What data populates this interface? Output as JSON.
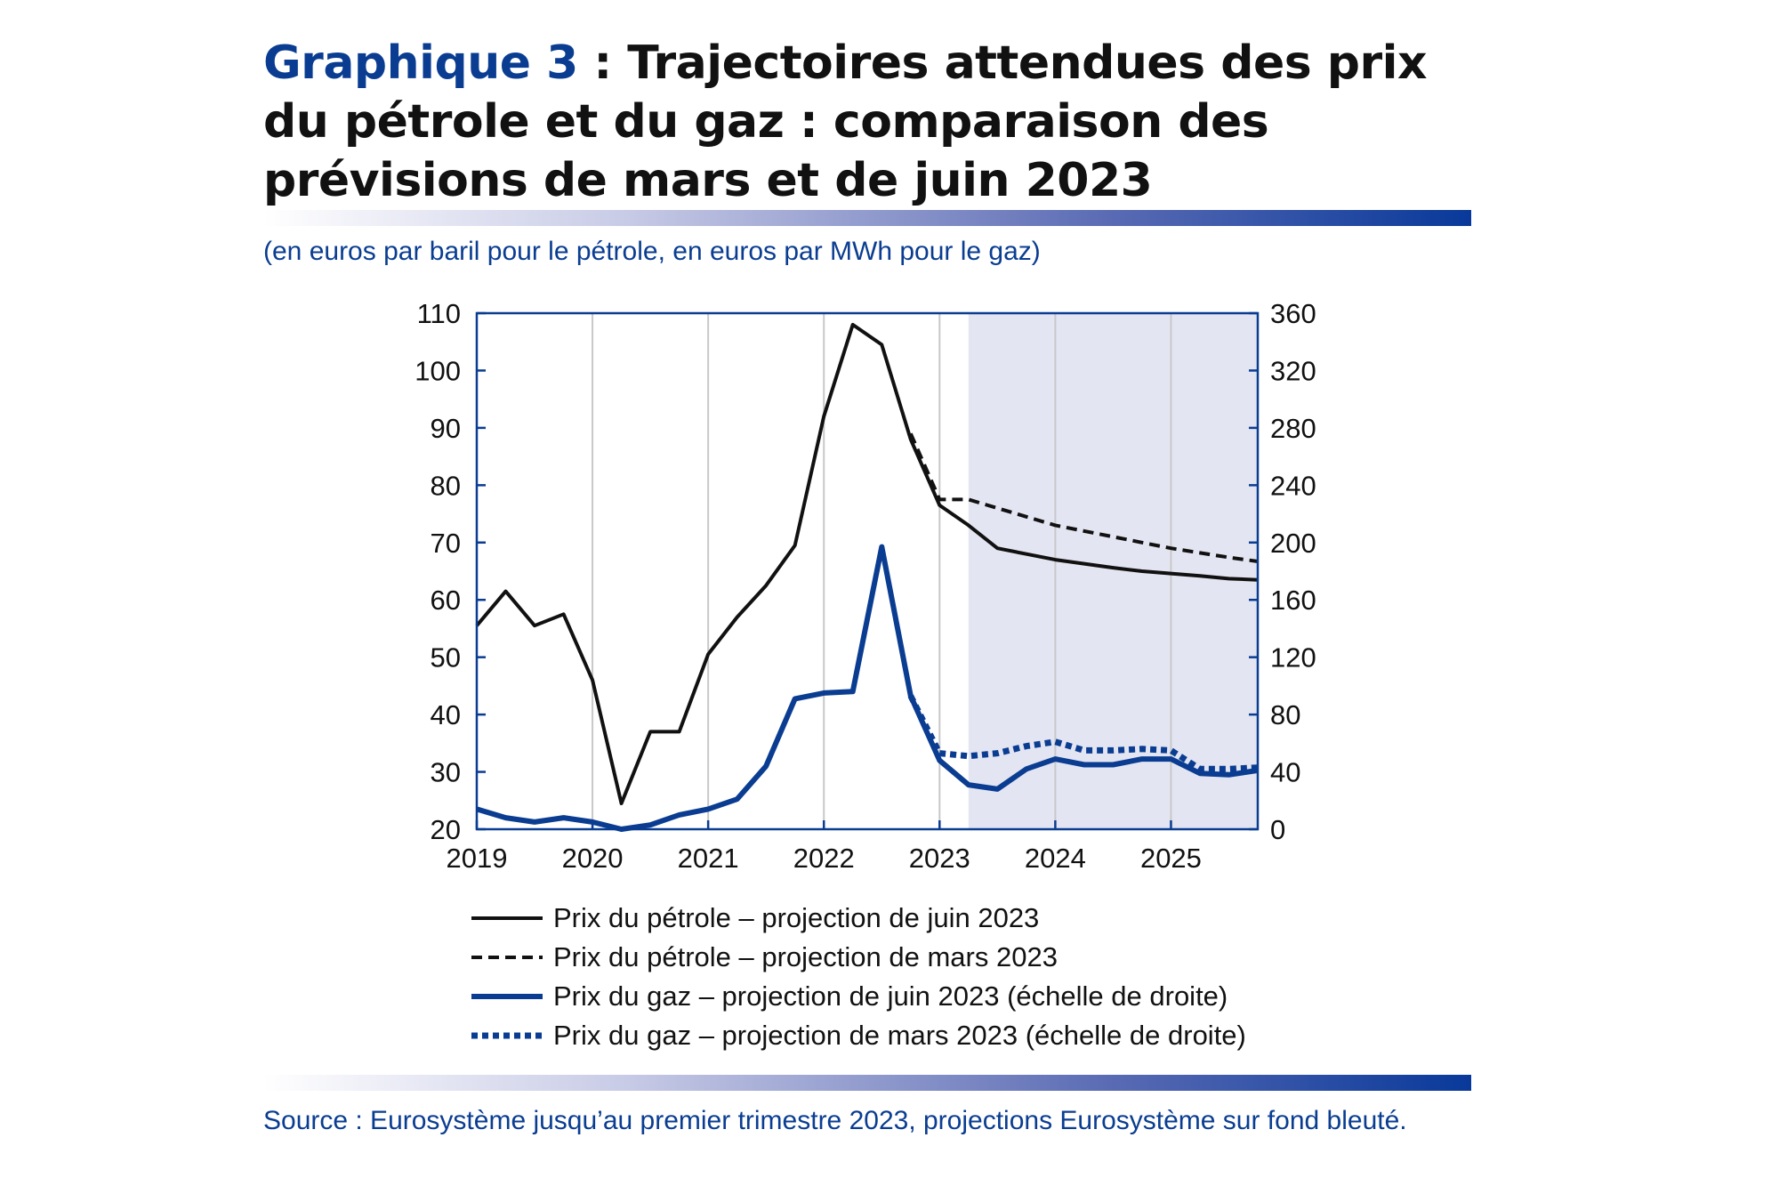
{
  "header": {
    "title_label": "Graphique 3",
    "title_text": " : Trajectoires attendues des prix du pétrole et du gaz : comparaison des prévisions de mars et de juin 2023",
    "unit_note": "(en euros par baril pour le pétrole, en euros par MWh pour le gaz)"
  },
  "footer": {
    "source": "Source : Eurosystème jusqu’au premier trimestre 2023, projections Eurosystème sur fond bleuté."
  },
  "colors": {
    "oil": "#111111",
    "gas": "#0a3d91",
    "projection_band": "#e4e5f2",
    "frame": "#0a3d91",
    "grid": "#c8c8c8"
  },
  "chart_data": {
    "type": "line",
    "x_ticks": [
      "2019",
      "2020",
      "2021",
      "2022",
      "2023",
      "2024",
      "2025"
    ],
    "xlim": [
      2019.0,
      2025.75
    ],
    "projection_start": 2023.25,
    "y_left": {
      "lim": [
        20,
        110
      ],
      "ticks": [
        "20",
        "30",
        "40",
        "50",
        "60",
        "70",
        "80",
        "90",
        "100",
        "110"
      ]
    },
    "y_right": {
      "lim": [
        0,
        360
      ],
      "ticks": [
        "0",
        "40",
        "80",
        "120",
        "160",
        "200",
        "240",
        "280",
        "320",
        "360"
      ]
    },
    "grid": "vertical",
    "legend_position": "below",
    "series": [
      {
        "name": "Prix du pétrole – projection de juin 2023",
        "axis": "left",
        "style": "solid",
        "color": "#111111",
        "x": [
          2019.0,
          2019.25,
          2019.5,
          2019.75,
          2020.0,
          2020.25,
          2020.5,
          2020.75,
          2021.0,
          2021.25,
          2021.5,
          2021.75,
          2022.0,
          2022.25,
          2022.5,
          2022.75,
          2023.0,
          2023.25,
          2023.5,
          2023.75,
          2024.0,
          2024.25,
          2024.5,
          2024.75,
          2025.0,
          2025.25,
          2025.5,
          2025.75
        ],
        "values": [
          55.5,
          61.5,
          55.5,
          57.5,
          46,
          24.5,
          37,
          37,
          50.5,
          57,
          62.5,
          69.5,
          92,
          108,
          104.5,
          88,
          76.5,
          73,
          69,
          68,
          67,
          66.3,
          65.6,
          65,
          64.6,
          64.2,
          63.7,
          63.5
        ]
      },
      {
        "name": "Prix du pétrole – projection de mars 2023",
        "axis": "left",
        "style": "dashed",
        "color": "#111111",
        "x": [
          2022.75,
          2023.0,
          2023.25,
          2023.5,
          2023.75,
          2024.0,
          2024.25,
          2024.5,
          2024.75,
          2025.0,
          2025.25,
          2025.5,
          2025.75
        ],
        "values": [
          89,
          77.5,
          77.5,
          76,
          74.5,
          73,
          72,
          71,
          70,
          69,
          68.2,
          67.4,
          66.7
        ]
      },
      {
        "name": "Prix du gaz – projection de juin 2023 (échelle de droite)",
        "axis": "right",
        "style": "solid",
        "color": "#0a3d91",
        "x": [
          2019.0,
          2019.25,
          2019.5,
          2019.75,
          2020.0,
          2020.25,
          2020.5,
          2020.75,
          2021.0,
          2021.25,
          2021.5,
          2021.75,
          2022.0,
          2022.25,
          2022.5,
          2022.75,
          2023.0,
          2023.25,
          2023.5,
          2023.75,
          2024.0,
          2024.25,
          2024.5,
          2024.75,
          2025.0,
          2025.25,
          2025.5,
          2025.75
        ],
        "values": [
          14,
          8,
          5,
          8,
          5,
          0,
          3,
          10,
          14,
          21,
          44,
          91,
          95,
          96,
          197,
          93,
          48,
          31,
          28,
          42,
          49,
          45,
          45,
          49,
          49,
          39,
          38,
          41
        ]
      },
      {
        "name": "Prix du gaz – projection de mars 2023 (échelle de droite)",
        "axis": "right",
        "style": "dotted",
        "color": "#0a3d91",
        "x": [
          2022.75,
          2023.0,
          2023.25,
          2023.5,
          2023.75,
          2024.0,
          2024.25,
          2024.5,
          2024.75,
          2025.0,
          2025.25,
          2025.5,
          2025.75
        ],
        "values": [
          93,
          53,
          51,
          53,
          58,
          61,
          55,
          55,
          56,
          55,
          42,
          42,
          43
        ]
      }
    ]
  }
}
